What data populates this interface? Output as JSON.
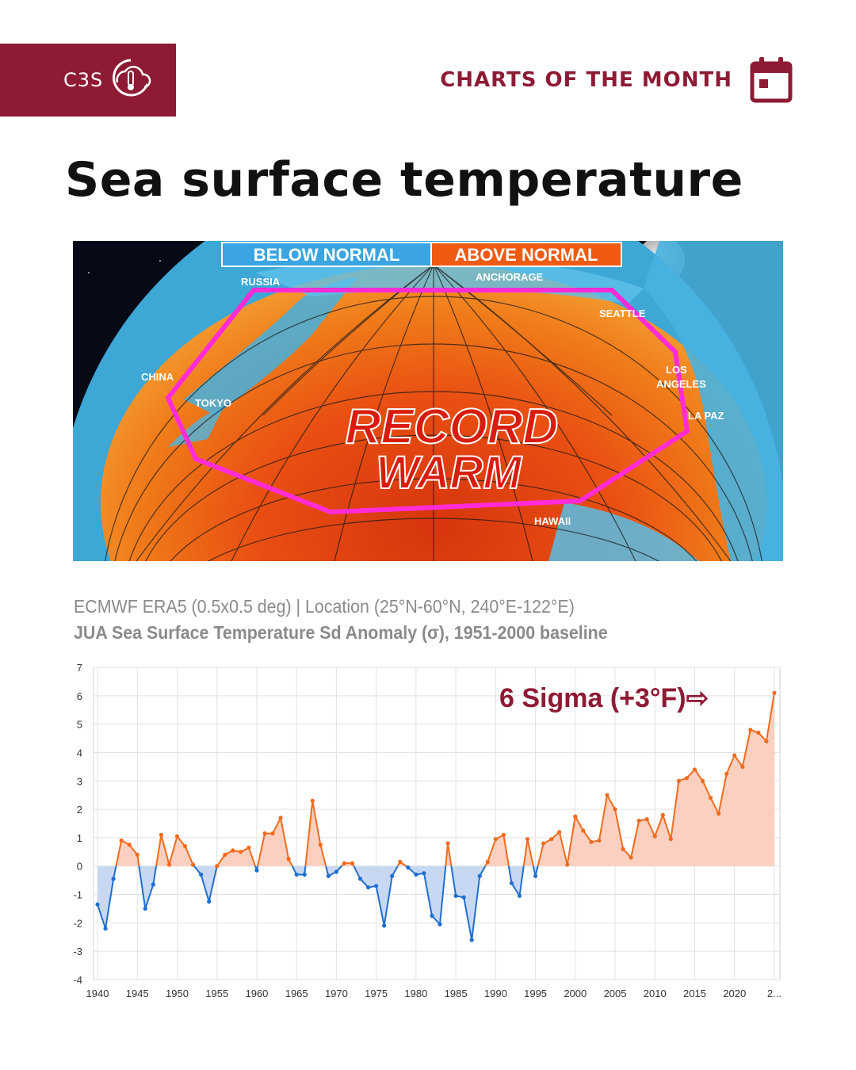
{
  "header": {
    "brand": "C3S",
    "section": "CHARTS OF THE MONTH",
    "brand_color": "#8e1a33"
  },
  "page": {
    "title": "Sea surface temperature"
  },
  "map": {
    "legend_below": "BELOW NORMAL",
    "legend_above": "ABOVE NORMAL",
    "labels": {
      "russia": "RUSSIA",
      "anchorage": "ANCHORAGE",
      "seattle": "SEATTLE",
      "china": "CHINA",
      "tokyo": "TOKYO",
      "los_angeles_1": "LOS",
      "los_angeles_2": "ANGELES",
      "la_paz": "LA PAZ",
      "hawaii": "HAWAII"
    },
    "banner_1": "RECORD",
    "banner_2": "WARM",
    "outline_color": "#ff2bd6"
  },
  "source": {
    "line1": "ECMWF ERA5 (0.5x0.5 deg) | Location (25°N-60°N, 240°E-122°E)",
    "line2": "JUA Sea Surface Temperature Sd Anomaly (σ), 1951-2000 baseline"
  },
  "chart_data": {
    "type": "area",
    "annotation": "6 Sigma (+3°F)⇨",
    "x_ticks": [
      "1940",
      "1945",
      "1950",
      "1955",
      "1960",
      "1965",
      "1970",
      "1975",
      "1980",
      "1985",
      "1990",
      "1995",
      "2000",
      "2005",
      "2010",
      "2015",
      "2020",
      "2..."
    ],
    "ylim": [
      -4,
      7
    ],
    "y_ticks": [
      7,
      6,
      5,
      4,
      3,
      2,
      1,
      0,
      -1,
      -2,
      -3,
      -4
    ],
    "grid": true,
    "colors": {
      "positive": "#f26b1d",
      "positive_fill": "#fbd0c0",
      "negative": "#1f6fd1",
      "negative_fill": "#c9d8f2"
    },
    "x": [
      1940,
      1941,
      1942,
      1943,
      1944,
      1945,
      1946,
      1947,
      1948,
      1949,
      1950,
      1951,
      1952,
      1953,
      1954,
      1955,
      1956,
      1957,
      1958,
      1959,
      1960,
      1961,
      1962,
      1963,
      1964,
      1965,
      1966,
      1967,
      1968,
      1969,
      1970,
      1971,
      1972,
      1973,
      1974,
      1975,
      1976,
      1977,
      1978,
      1979,
      1980,
      1981,
      1982,
      1983,
      1984,
      1985,
      1986,
      1987,
      1988,
      1989,
      1990,
      1991,
      1992,
      1993,
      1994,
      1995,
      1996,
      1997,
      1998,
      1999,
      2000,
      2001,
      2002,
      2003,
      2004,
      2005,
      2006,
      2007,
      2008,
      2009,
      2010,
      2011,
      2012,
      2013,
      2014,
      2015,
      2016,
      2017,
      2018,
      2019,
      2020,
      2021,
      2022,
      2023,
      2024,
      2025
    ],
    "values": [
      -1.35,
      -2.2,
      -0.45,
      0.9,
      0.75,
      0.4,
      -1.5,
      -0.65,
      1.1,
      0.05,
      1.05,
      0.7,
      0.05,
      -0.3,
      -1.25,
      0.0,
      0.4,
      0.55,
      0.5,
      0.65,
      -0.15,
      1.15,
      1.15,
      1.7,
      0.25,
      -0.3,
      -0.3,
      2.3,
      0.75,
      -0.35,
      -0.2,
      0.1,
      0.1,
      -0.45,
      -0.75,
      -0.7,
      -2.1,
      -0.35,
      0.15,
      -0.05,
      -0.3,
      -0.25,
      -1.75,
      -2.05,
      0.8,
      -1.05,
      -1.1,
      -2.6,
      -0.35,
      0.15,
      0.95,
      1.1,
      -0.6,
      -1.05,
      0.95,
      -0.35,
      0.8,
      0.95,
      1.2,
      0.05,
      1.75,
      1.25,
      0.85,
      0.9,
      2.5,
      2.0,
      0.6,
      0.3,
      1.6,
      1.65,
      1.05,
      1.8,
      0.95,
      3.0,
      3.1,
      3.4,
      3.0,
      2.4,
      1.85,
      3.25,
      3.9,
      3.5,
      4.8,
      4.7,
      4.4,
      6.1
    ]
  }
}
